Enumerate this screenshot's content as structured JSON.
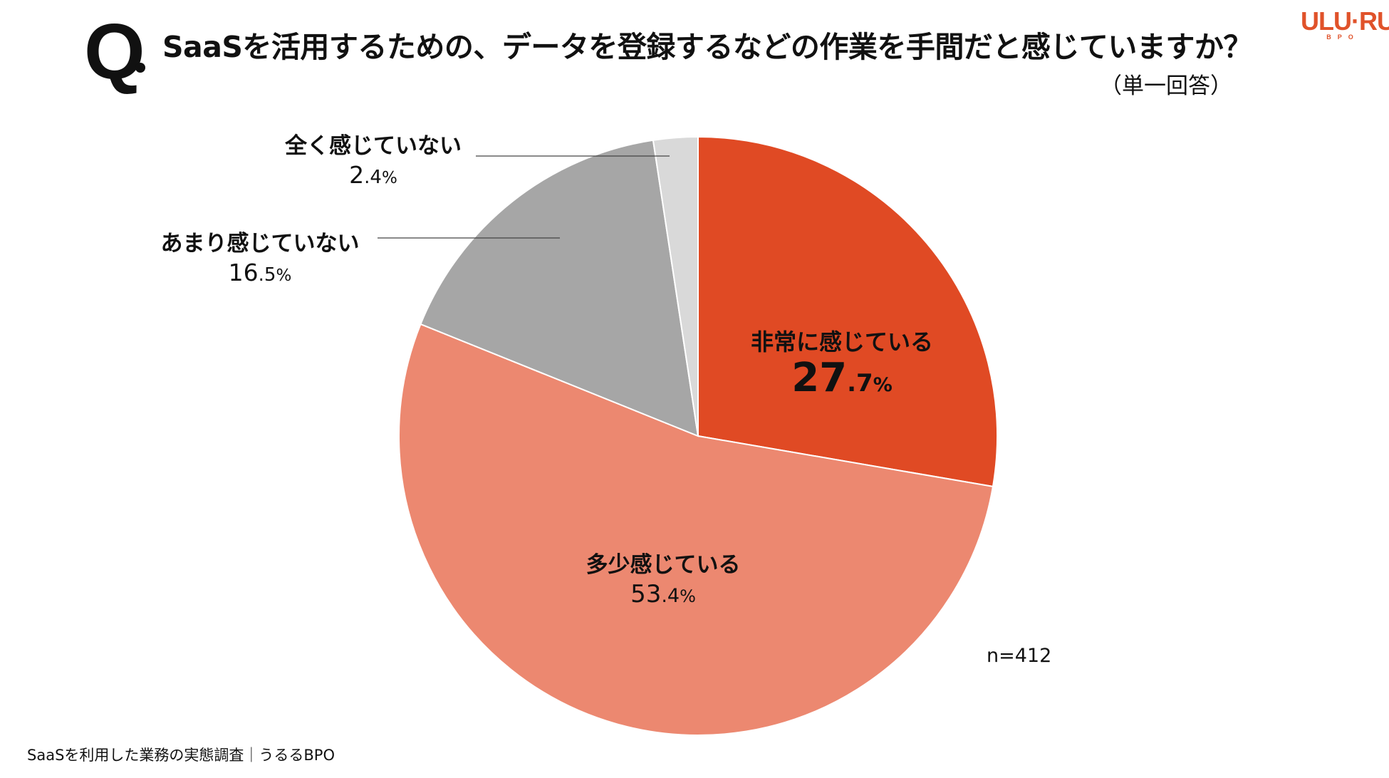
{
  "header": {
    "q_mark": "Q",
    "question": "SaaSを活用するための、データを登録するなどの作業を手間だと感じていますか？",
    "note": "（単一回答）"
  },
  "logo": {
    "main": "ULU·RU",
    "sub": "BPO"
  },
  "footer": "SaaSを利用した業務の実態調査｜うるるBPO",
  "chart_data": {
    "type": "pie",
    "start": "12 o'clock, clockwise",
    "sample_note": "n=412",
    "slices": [
      {
        "label": "非常に感じている",
        "value": 27.7,
        "value_int": "27",
        "value_dec": ".7",
        "pct_sign": "%",
        "color": "#e04a24"
      },
      {
        "label": "多少感じている",
        "value": 53.4,
        "value_int": "53",
        "value_dec": ".4",
        "pct_sign": "%",
        "color": "#ec8870"
      },
      {
        "label": "あまり感じていない",
        "value": 16.5,
        "value_int": "16",
        "value_dec": ".5",
        "pct_sign": "%",
        "color": "#a6a6a6"
      },
      {
        "label": "全く感じていない",
        "value": 2.4,
        "value_int": "2",
        "value_dec": ".4",
        "pct_sign": "%",
        "color": "#d9d9d9"
      }
    ]
  }
}
